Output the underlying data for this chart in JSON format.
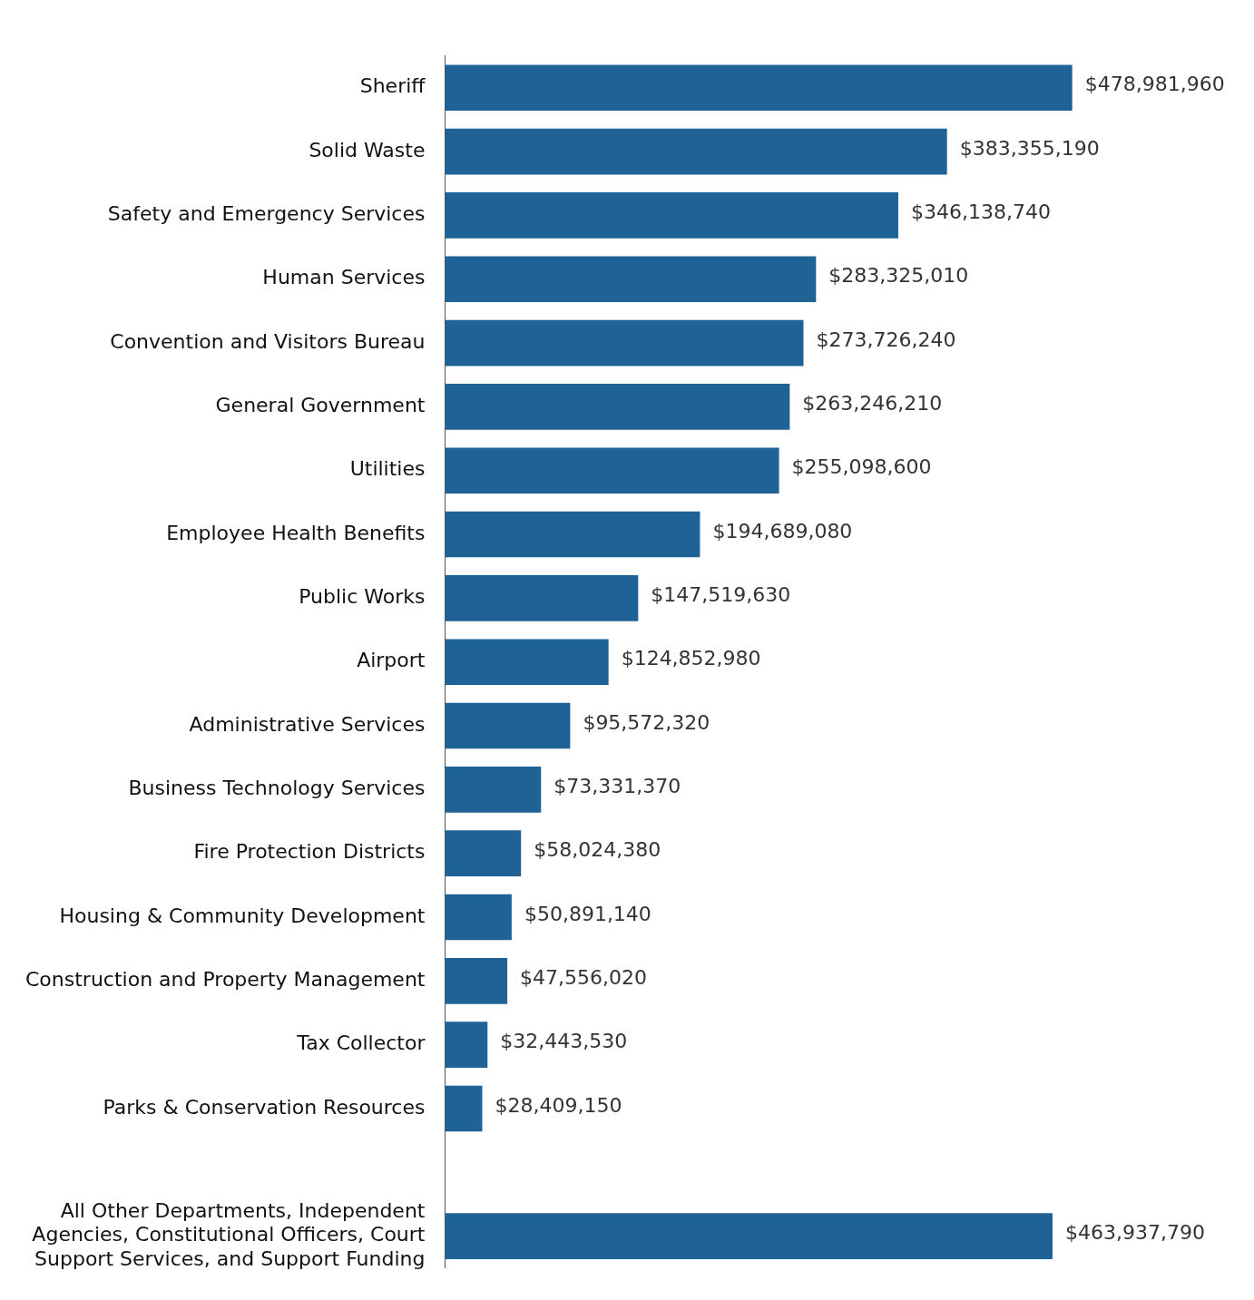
{
  "chart_data": {
    "type": "bar",
    "orientation": "horizontal",
    "tick_labels": "y",
    "grid": false,
    "legend": false,
    "categories": [
      "Sheriff",
      "Solid Waste",
      "Safety and Emergency Services",
      "Human Services",
      "Convention and Visitors Bureau",
      "General Government",
      "Utilities",
      "Employee Health Benefits",
      "Public Works",
      "Airport",
      "Administrative Services",
      "Business Technology Services",
      "Fire Protection Districts",
      "Housing & Community Development",
      "Construction and Property Management",
      "Tax Collector",
      "Parks & Conservation Resources",
      null,
      "All Other Departments, Independent Agencies, Constitutional Officers, Court Support Services, and Support Funding"
    ],
    "values": [
      478981960,
      383355190,
      346138740,
      283325010,
      273726240,
      263246210,
      255098600,
      194689080,
      147519630,
      124852980,
      95572320,
      73331370,
      58024380,
      50891140,
      47556020,
      32443530,
      28409150,
      null,
      463937790
    ],
    "value_labels": [
      "$478,981,960",
      "$383,355,190",
      "$346,138,740",
      "$283,325,010",
      "$273,726,240",
      "$263,246,210",
      "$255,098,600",
      "$194,689,080",
      "$147,519,630",
      "$124,852,980",
      "$95,572,320",
      "$73,331,370",
      "$58,024,380",
      "$50,891,140",
      "$47,556,020",
      "$32,443,530",
      "$28,409,150",
      null,
      "$463,937,790"
    ],
    "color": "#1f6396"
  }
}
